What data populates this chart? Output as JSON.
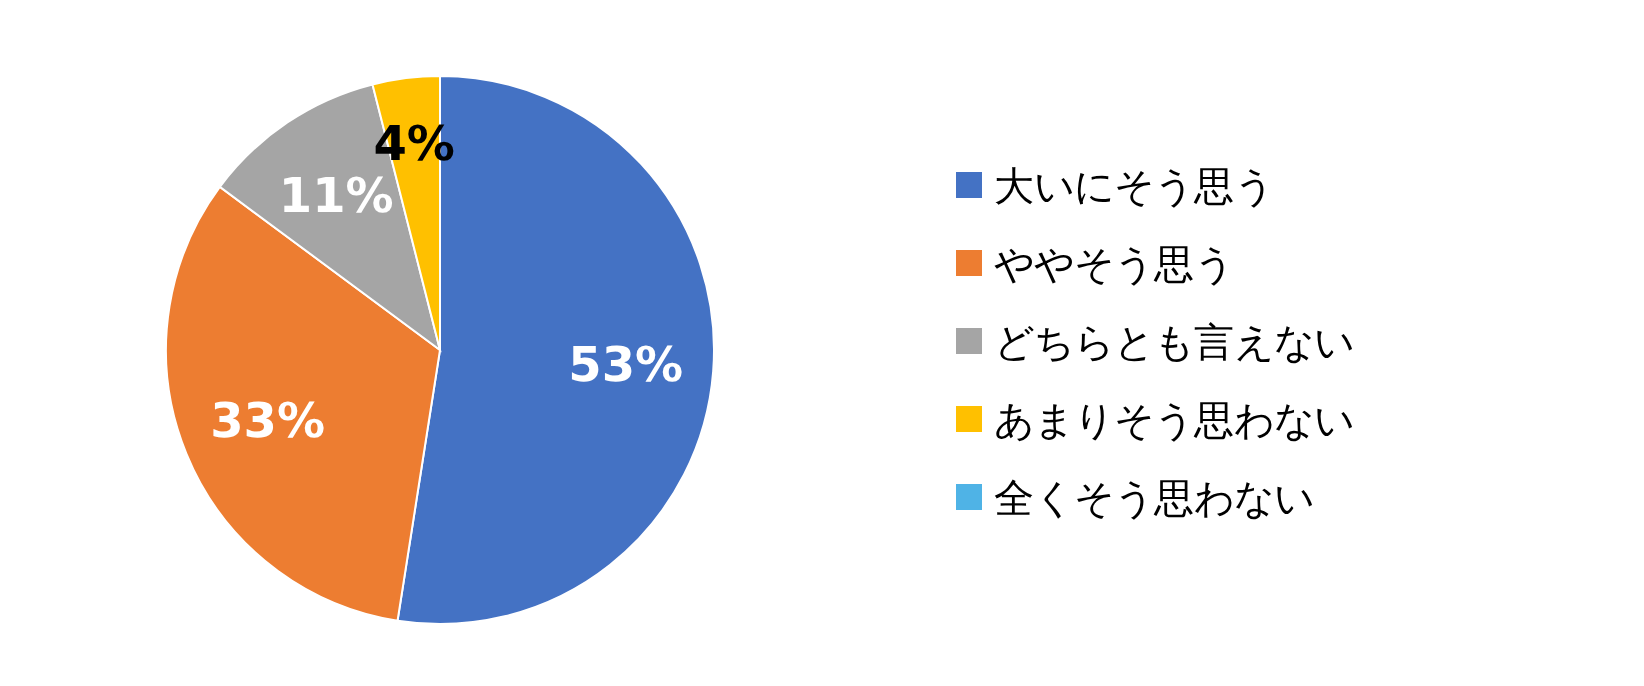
{
  "chart_data": {
    "type": "pie",
    "categories": [
      "大いにそう思う",
      "ややそう思う",
      "どちらとも言えない",
      "あまりそう思わない",
      "全くそう思わない"
    ],
    "values": [
      53,
      33,
      11,
      4,
      0
    ],
    "colors": [
      "#4472c4",
      "#ed7d31",
      "#a5a5a5",
      "#ffc000",
      "#4fb3e6"
    ],
    "value_labels": [
      "53%",
      "33%",
      "11%",
      "4%",
      null
    ],
    "legend": "right"
  }
}
